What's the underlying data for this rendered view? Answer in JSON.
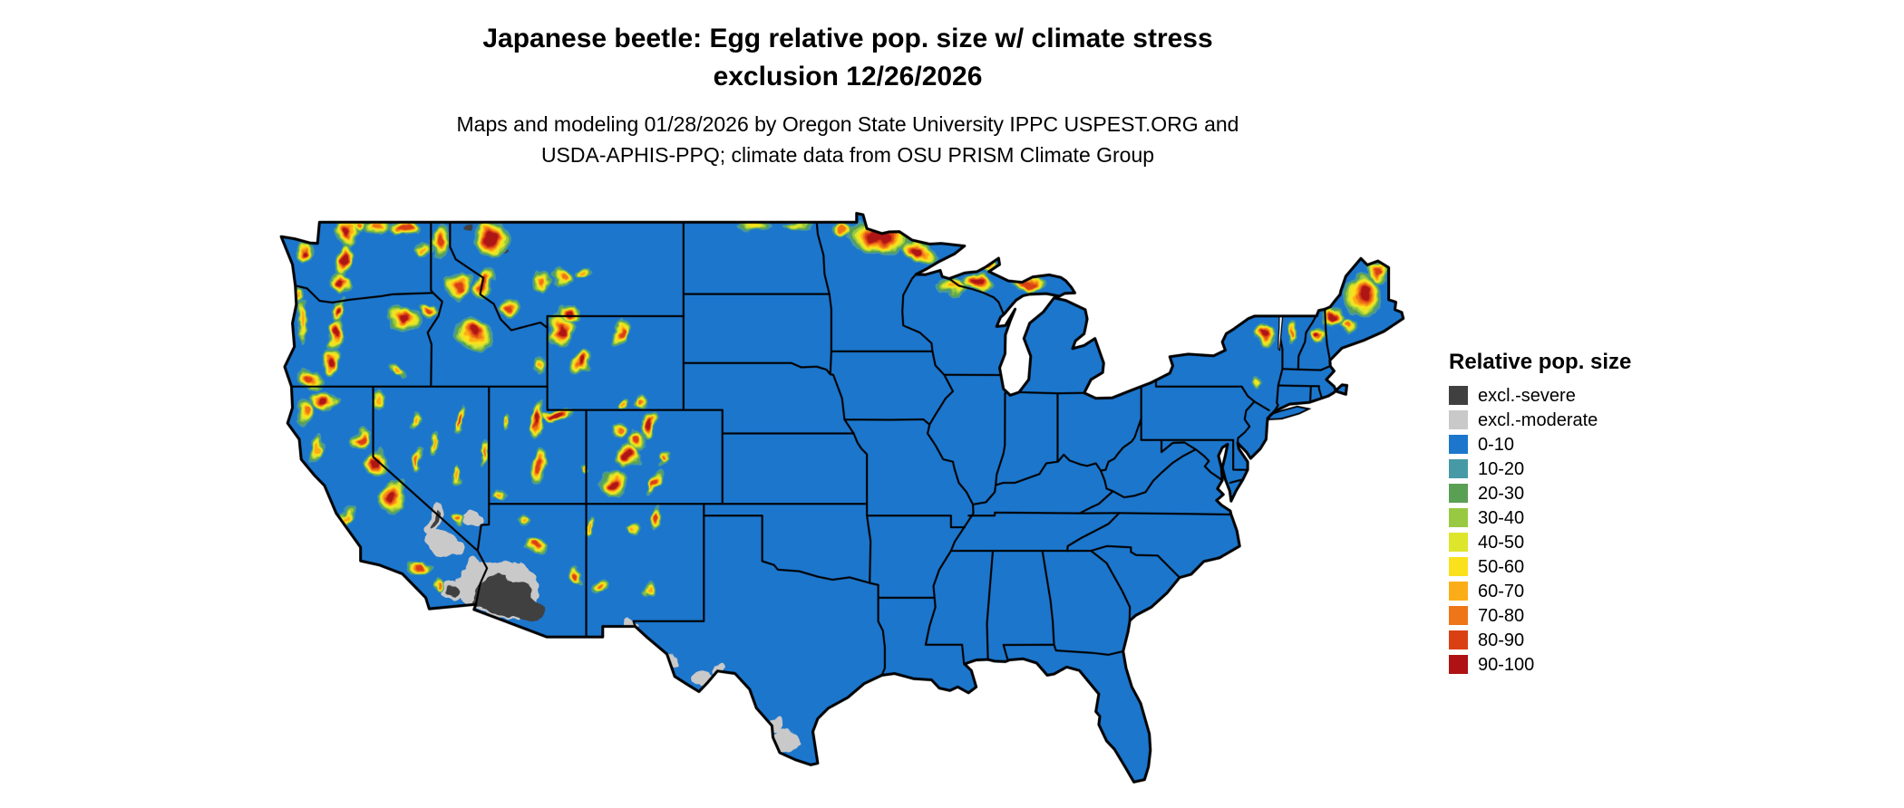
{
  "title": {
    "line1": "Japanese beetle: Egg relative pop. size w/ climate stress",
    "line2": "exclusion 12/26/2026"
  },
  "subtitle": {
    "line1": "Maps and modeling 01/28/2026 by Oregon State University IPPC USPEST.ORG and",
    "line2": "USDA-APHIS-PPQ; climate data from OSU PRISM Climate Group"
  },
  "legend": {
    "title": "Relative pop. size",
    "items": [
      {
        "label": "excl.-severe",
        "color": "#404040"
      },
      {
        "label": "excl.-moderate",
        "color": "#C9C9C9"
      },
      {
        "label": "0-10",
        "color": "#1C76CC"
      },
      {
        "label": "10-20",
        "color": "#4799A5"
      },
      {
        "label": "20-30",
        "color": "#5AA054"
      },
      {
        "label": "30-40",
        "color": "#99C942"
      },
      {
        "label": "40-50",
        "color": "#DDE62B"
      },
      {
        "label": "50-60",
        "color": "#FBE01C"
      },
      {
        "label": "60-70",
        "color": "#FBAD18"
      },
      {
        "label": "70-80",
        "color": "#EE7518"
      },
      {
        "label": "80-90",
        "color": "#D94114"
      },
      {
        "label": "90-100",
        "color": "#AE1214"
      }
    ]
  },
  "map": {
    "background": "#FFFFFF",
    "border_color": "#000000",
    "base_class_color": "#1C76CC"
  }
}
